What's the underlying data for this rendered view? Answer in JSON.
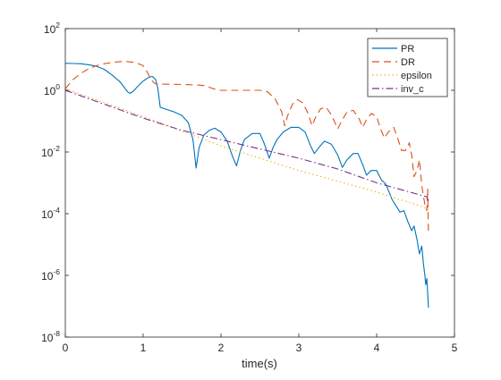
{
  "chart_data": {
    "type": "line",
    "title": "",
    "xlabel": "time(s)",
    "ylabel": "",
    "xlim": [
      0,
      5
    ],
    "ylim_exponent": [
      -8,
      2
    ],
    "y_scale": "log",
    "y_base": "10",
    "grid": false,
    "legend_position": "top-right",
    "x_ticks": [
      "0",
      "1",
      "2",
      "3",
      "4",
      "5"
    ],
    "y_ticks": [
      {
        "base": "10",
        "exp": "-8"
      },
      {
        "base": "10",
        "exp": "-6"
      },
      {
        "base": "10",
        "exp": "-4"
      },
      {
        "base": "10",
        "exp": "-2"
      },
      {
        "base": "10",
        "exp": "0"
      },
      {
        "base": "10",
        "exp": "2"
      }
    ],
    "series": [
      {
        "name": "PR",
        "color": "#0072BD",
        "dash": "solid",
        "points": [
          [
            0,
            0.875
          ],
          [
            0.1,
            0.87
          ],
          [
            0.2,
            0.86
          ],
          [
            0.3,
            0.83
          ],
          [
            0.4,
            0.78
          ],
          [
            0.5,
            0.68
          ],
          [
            0.6,
            0.5
          ],
          [
            0.7,
            0.28
          ],
          [
            0.75,
            0.12
          ],
          [
            0.8,
            -0.05
          ],
          [
            0.83,
            -0.1
          ],
          [
            0.87,
            -0.04
          ],
          [
            0.92,
            0.1
          ],
          [
            1.0,
            0.3
          ],
          [
            1.08,
            0.43
          ],
          [
            1.12,
            0.45
          ],
          [
            1.16,
            0.35
          ],
          [
            1.19,
            0.05
          ],
          [
            1.22,
            -0.55
          ],
          [
            1.3,
            -0.62
          ],
          [
            1.4,
            -0.7
          ],
          [
            1.5,
            -0.82
          ],
          [
            1.58,
            -1.05
          ],
          [
            1.64,
            -1.6
          ],
          [
            1.68,
            -2.52
          ],
          [
            1.72,
            -1.85
          ],
          [
            1.78,
            -1.45
          ],
          [
            1.85,
            -1.3
          ],
          [
            1.92,
            -1.23
          ],
          [
            2.0,
            -1.35
          ],
          [
            2.08,
            -1.65
          ],
          [
            2.15,
            -2.15
          ],
          [
            2.2,
            -2.45
          ],
          [
            2.25,
            -1.95
          ],
          [
            2.3,
            -1.6
          ],
          [
            2.4,
            -1.4
          ],
          [
            2.5,
            -1.4
          ],
          [
            2.56,
            -1.75
          ],
          [
            2.62,
            -2.2
          ],
          [
            2.67,
            -1.85
          ],
          [
            2.72,
            -1.6
          ],
          [
            2.8,
            -1.35
          ],
          [
            2.9,
            -1.2
          ],
          [
            3.0,
            -1.2
          ],
          [
            3.08,
            -1.35
          ],
          [
            3.15,
            -1.8
          ],
          [
            3.2,
            -2.05
          ],
          [
            3.26,
            -1.85
          ],
          [
            3.33,
            -1.65
          ],
          [
            3.42,
            -1.75
          ],
          [
            3.5,
            -2.1
          ],
          [
            3.56,
            -2.5
          ],
          [
            3.62,
            -2.25
          ],
          [
            3.7,
            -2.05
          ],
          [
            3.76,
            -2.05
          ],
          [
            3.82,
            -2.4
          ],
          [
            3.87,
            -2.75
          ],
          [
            3.93,
            -2.6
          ],
          [
            4.0,
            -2.6
          ],
          [
            4.06,
            -2.9
          ],
          [
            4.12,
            -3.05
          ],
          [
            4.16,
            -3.3
          ],
          [
            4.2,
            -3.55
          ],
          [
            4.25,
            -3.75
          ],
          [
            4.3,
            -3.95
          ],
          [
            4.35,
            -3.9
          ],
          [
            4.4,
            -4.25
          ],
          [
            4.45,
            -4.55
          ],
          [
            4.48,
            -4.4
          ],
          [
            4.52,
            -4.85
          ],
          [
            4.55,
            -5.3
          ],
          [
            4.58,
            -5.05
          ],
          [
            4.6,
            -5.6
          ],
          [
            4.62,
            -6.0
          ],
          [
            4.63,
            -6.3
          ],
          [
            4.645,
            -6.1
          ],
          [
            4.655,
            -6.55
          ],
          [
            4.665,
            -7.05
          ]
        ]
      },
      {
        "name": "DR",
        "color": "#D95319",
        "dash": "8,5",
        "points": [
          [
            0,
            0.05
          ],
          [
            0.1,
            0.35
          ],
          [
            0.2,
            0.55
          ],
          [
            0.3,
            0.7
          ],
          [
            0.4,
            0.8
          ],
          [
            0.5,
            0.86
          ],
          [
            0.6,
            0.9
          ],
          [
            0.7,
            0.93
          ],
          [
            0.8,
            0.93
          ],
          [
            0.9,
            0.9
          ],
          [
            1.0,
            0.8
          ],
          [
            1.05,
            0.6
          ],
          [
            1.1,
            0.35
          ],
          [
            1.15,
            0.22
          ],
          [
            1.18,
            0.2
          ],
          [
            1.25,
            0.2
          ],
          [
            1.5,
            0.19
          ],
          [
            1.7,
            0.17
          ],
          [
            1.8,
            0.15
          ],
          [
            1.9,
            0.05
          ],
          [
            2.0,
            0.0
          ],
          [
            2.3,
            0.0
          ],
          [
            2.5,
            0.0
          ],
          [
            2.6,
            -0.05
          ],
          [
            2.7,
            -0.3
          ],
          [
            2.78,
            -0.7
          ],
          [
            2.82,
            -1.15
          ],
          [
            2.86,
            -0.8
          ],
          [
            2.92,
            -0.45
          ],
          [
            2.98,
            -0.3
          ],
          [
            3.05,
            -0.4
          ],
          [
            3.12,
            -0.75
          ],
          [
            3.17,
            -1.15
          ],
          [
            3.22,
            -0.85
          ],
          [
            3.28,
            -0.6
          ],
          [
            3.35,
            -0.55
          ],
          [
            3.42,
            -0.8
          ],
          [
            3.5,
            -1.25
          ],
          [
            3.56,
            -0.95
          ],
          [
            3.62,
            -0.7
          ],
          [
            3.7,
            -0.65
          ],
          [
            3.78,
            -0.95
          ],
          [
            3.82,
            -1.2
          ],
          [
            3.87,
            -0.95
          ],
          [
            3.93,
            -0.75
          ],
          [
            4.0,
            -0.85
          ],
          [
            4.05,
            -1.25
          ],
          [
            4.1,
            -1.55
          ],
          [
            4.15,
            -1.35
          ],
          [
            4.22,
            -1.2
          ],
          [
            4.27,
            -1.55
          ],
          [
            4.32,
            -1.95
          ],
          [
            4.37,
            -1.95
          ],
          [
            4.42,
            -1.7
          ],
          [
            4.45,
            -2.1
          ],
          [
            4.48,
            -2.8
          ],
          [
            4.52,
            -2.6
          ],
          [
            4.55,
            -2.25
          ],
          [
            4.58,
            -3.1
          ],
          [
            4.62,
            -3.7
          ],
          [
            4.645,
            -3.9
          ],
          [
            4.655,
            -3.2
          ],
          [
            4.665,
            -4.65
          ]
        ]
      },
      {
        "name": "epsilon",
        "color": "#EDB120",
        "dash": "1.5,3",
        "points": [
          [
            0,
            0.05
          ],
          [
            1.0,
            -0.85
          ],
          [
            2.0,
            -1.8
          ],
          [
            3.0,
            -2.6
          ],
          [
            4.0,
            -3.3
          ],
          [
            4.5,
            -3.7
          ],
          [
            4.67,
            -3.85
          ]
        ]
      },
      {
        "name": "inv_c",
        "color": "#7E2F8E",
        "dash": "8,3,1.5,3",
        "points": [
          [
            0,
            0.0
          ],
          [
            0.5,
            -0.45
          ],
          [
            1.0,
            -0.9
          ],
          [
            1.5,
            -1.3
          ],
          [
            2.0,
            -1.6
          ],
          [
            2.5,
            -1.9
          ],
          [
            3.0,
            -2.2
          ],
          [
            3.5,
            -2.55
          ],
          [
            4.0,
            -3.0
          ],
          [
            4.5,
            -3.35
          ],
          [
            4.64,
            -3.45
          ],
          [
            4.67,
            -3.6
          ]
        ]
      }
    ]
  }
}
